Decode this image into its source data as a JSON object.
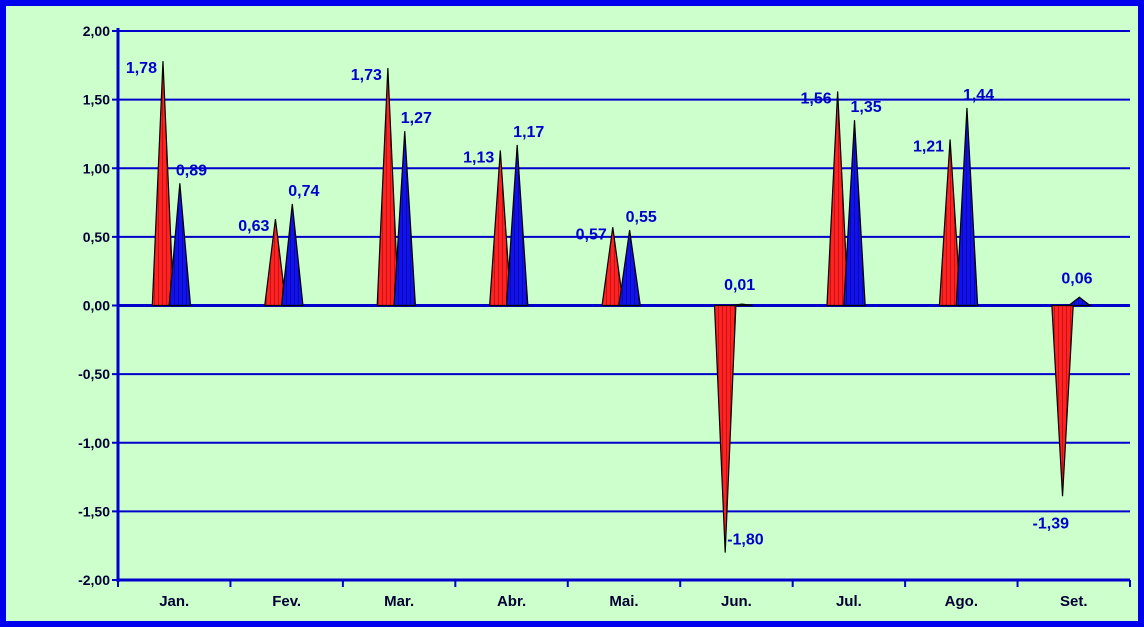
{
  "chart_data": {
    "type": "area",
    "title": "",
    "xlabel": "",
    "ylabel": "",
    "ylim": [
      -2.0,
      2.0
    ],
    "yticks": [
      "-2,00",
      "-1,50",
      "-1,00",
      "-0,50",
      "0,00",
      "0,50",
      "1,00",
      "1,50",
      "2,00"
    ],
    "grid": true,
    "legend": "none",
    "categories": [
      "Jan.",
      "Fev.",
      "Mar.",
      "Abr.",
      "Mai.",
      "Jun.",
      "Jul.",
      "Ago.",
      "Set."
    ],
    "series": [
      {
        "color": "#ff2222",
        "values": [
          1.78,
          0.63,
          1.73,
          1.13,
          0.57,
          -1.8,
          1.56,
          1.21,
          -1.39
        ],
        "labels": [
          "1,78",
          "0,63",
          "1,73",
          "1,13",
          "0,57",
          "-1,80",
          "1,56",
          "1,21",
          "-1,39"
        ]
      },
      {
        "color": "#1111ee",
        "values": [
          0.89,
          0.74,
          1.27,
          1.17,
          0.55,
          0.01,
          1.35,
          1.44,
          0.06
        ],
        "labels": [
          "0,89",
          "0,74",
          "1,27",
          "1,17",
          "0,55",
          "0,01",
          "1,35",
          "1,44",
          "0,06"
        ]
      }
    ],
    "colors": {
      "outer_background": "#0000ee",
      "plot_background": "#ccffcc",
      "gridline": "#0000cc",
      "data_label": "#0000cc"
    }
  }
}
